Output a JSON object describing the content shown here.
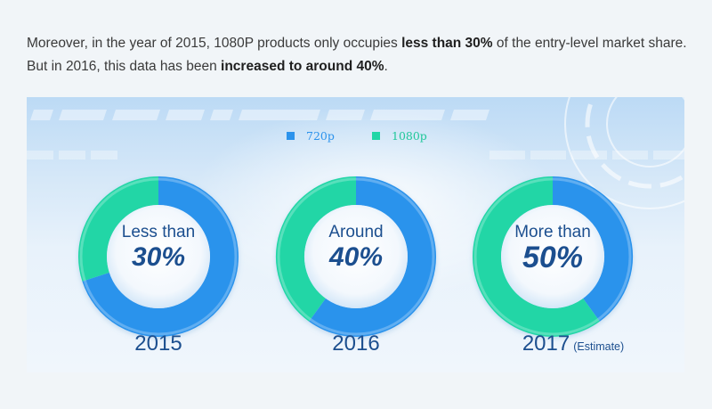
{
  "intro": {
    "p1": "Moreover, in the year of 2015, 1080P products only occupies ",
    "b1": "less than 30%",
    "p2": " of the entry-level market share. But in 2016, this data has been ",
    "b2": "increased to around 40%",
    "p3": "."
  },
  "colors": {
    "s720p": "#2c93ec",
    "s1080p": "#20d6a6"
  },
  "chart_data": {
    "type": "pie",
    "legend": [
      "720p",
      "1080p"
    ],
    "legend_placement": "top-center",
    "series": [
      {
        "year": "2015",
        "note": "",
        "label_line1": "Less than",
        "label_line2": "30%",
        "values": {
          "720p": 70,
          "1080p": 30
        }
      },
      {
        "year": "2016",
        "note": "",
        "label_line1": "Around",
        "label_line2": "40%",
        "values": {
          "720p": 60,
          "1080p": 40
        }
      },
      {
        "year": "2017",
        "note": "(Estimate)",
        "label_line1": "More than",
        "label_line2": "50%",
        "values": {
          "720p": 40,
          "1080p": 60
        }
      }
    ]
  }
}
